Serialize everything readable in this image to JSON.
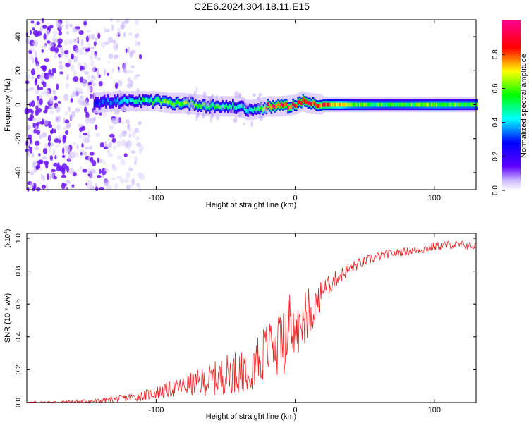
{
  "page_title": "C2E6.2024.304.18.11.E15",
  "chart_data": [
    {
      "type": "heatmap",
      "title": "C2E6.2024.304.18.11.E15",
      "xlabel": "Height of straight line (km)",
      "ylabel": "Frequency (Hz)",
      "xlim": [
        -193,
        130
      ],
      "ylim": [
        -50,
        50
      ],
      "x_ticks": [
        -100,
        0,
        100
      ],
      "y_ticks": [
        -40,
        -20,
        0,
        20,
        40
      ],
      "colorbar": {
        "label": "Normalized spectral amplitude",
        "range": [
          0,
          1
        ],
        "ticks": [
          0.0,
          0.2,
          0.4,
          0.6,
          0.8
        ],
        "colors": [
          "#ffffff",
          "#6000ff",
          "#0000ff",
          "#00ffff",
          "#00ff00",
          "#ffff00",
          "#ff0000",
          "#ff00a0"
        ]
      },
      "ridge": {
        "x": [
          -145,
          -130,
          -115,
          -100,
          -90,
          -80,
          -70,
          -60,
          -50,
          -40,
          -35,
          -30,
          -25,
          -20,
          -10,
          0,
          5,
          10,
          20,
          40,
          60,
          80,
          100,
          130
        ],
        "frequency_hz": [
          1,
          2,
          2,
          2,
          1,
          1,
          0,
          -1,
          -1,
          -1,
          -3,
          -3,
          -2,
          -1,
          -1,
          0,
          2,
          1,
          0,
          0,
          0,
          0,
          0,
          0
        ],
        "amplitude": [
          0.3,
          0.35,
          0.45,
          0.55,
          0.6,
          0.6,
          0.55,
          0.55,
          0.5,
          0.45,
          0.4,
          0.45,
          0.6,
          0.85,
          0.9,
          0.8,
          0.95,
          0.8,
          0.85,
          0.6,
          0.55,
          0.55,
          0.6,
          0.55
        ]
      },
      "noise_region_x": [
        -193,
        -110
      ]
    },
    {
      "type": "line",
      "xlabel": "Height of straight line (km)",
      "ylabel": "SNR (10 * v/v)",
      "y_scale_label": "(x10",
      "y_scale_exponent": "4",
      "xlim": [
        -193,
        130
      ],
      "ylim": [
        0,
        1.03
      ],
      "x_ticks": [
        -100,
        0,
        100
      ],
      "y_ticks": [
        0.0,
        0.2,
        0.4,
        0.6,
        0.8,
        1.0
      ],
      "series": [
        {
          "color": "#ee2020",
          "x": [
            -193,
            -160,
            -140,
            -130,
            -120,
            -110,
            -100,
            -90,
            -80,
            -70,
            -60,
            -50,
            -40,
            -35,
            -30,
            -25,
            -20,
            -10,
            0,
            5,
            10,
            15,
            20,
            30,
            40,
            50,
            60,
            70,
            80,
            90,
            100,
            110,
            120,
            130
          ],
          "y": [
            0.0,
            0.005,
            0.01,
            0.02,
            0.03,
            0.04,
            0.06,
            0.08,
            0.1,
            0.12,
            0.14,
            0.17,
            0.2,
            0.22,
            0.25,
            0.28,
            0.33,
            0.38,
            0.42,
            0.46,
            0.52,
            0.6,
            0.68,
            0.76,
            0.82,
            0.86,
            0.89,
            0.91,
            0.92,
            0.93,
            0.95,
            0.96,
            0.96,
            0.95
          ],
          "spread": [
            0.005,
            0.01,
            0.015,
            0.02,
            0.025,
            0.03,
            0.04,
            0.05,
            0.06,
            0.08,
            0.1,
            0.12,
            0.14,
            0.15,
            0.17,
            0.18,
            0.16,
            0.17,
            0.17,
            0.15,
            0.14,
            0.1,
            0.07,
            0.05,
            0.04,
            0.03,
            0.03,
            0.025,
            0.025,
            0.025,
            0.03,
            0.025,
            0.025,
            0.025
          ]
        }
      ]
    }
  ]
}
